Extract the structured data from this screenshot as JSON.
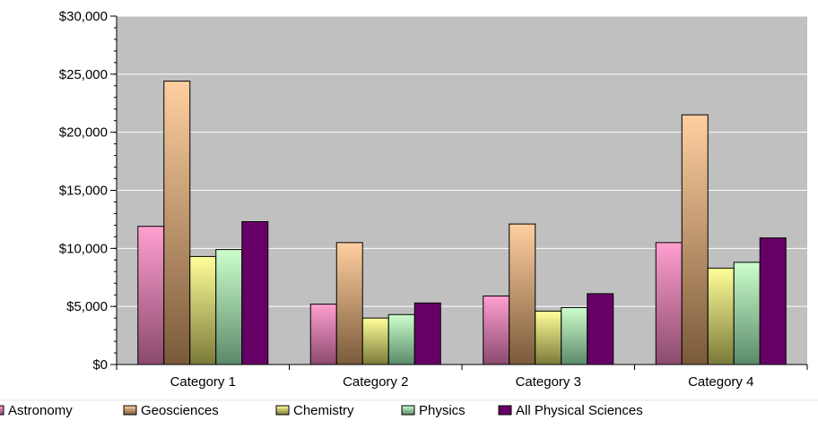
{
  "chart_data": {
    "type": "bar",
    "title": "",
    "xlabel": "",
    "ylabel": "",
    "categories": [
      "Category 1",
      "Category 2",
      "Category 3",
      "Category 4"
    ],
    "ylim": [
      0,
      30000
    ],
    "yticks": [
      "$0",
      "$5,000",
      "$10,000",
      "$15,000",
      "$20,000",
      "$25,000",
      "$30,000"
    ],
    "ytick_values": [
      0,
      5000,
      10000,
      15000,
      20000,
      25000,
      30000
    ],
    "minor_tick_step": 1000,
    "grid": true,
    "legend_position": "bottom",
    "series": [
      {
        "name": "Astronomy",
        "values": [
          11900,
          5200,
          5900,
          10500
        ],
        "color_top": "#ff9fd0",
        "color_bottom": "#8a4a6e"
      },
      {
        "name": "Geosciences",
        "values": [
          24400,
          10500,
          12100,
          21500
        ],
        "color_top": "#ffcfa0",
        "color_bottom": "#7a5a3a"
      },
      {
        "name": "Chemistry",
        "values": [
          9300,
          4000,
          4600,
          8300
        ],
        "color_top": "#ffff99",
        "color_bottom": "#7a7a3a"
      },
      {
        "name": "Physics",
        "values": [
          9900,
          4300,
          4900,
          8800
        ],
        "color_top": "#ccffcc",
        "color_bottom": "#5a8a6a"
      },
      {
        "name": "All Physical Sciences",
        "values": [
          12300,
          5300,
          6100,
          10900
        ],
        "color_top": "#660066",
        "color_bottom": "#660066"
      }
    ],
    "plot_background": "#c0c0c0",
    "gridline_color": "#ffffff"
  }
}
